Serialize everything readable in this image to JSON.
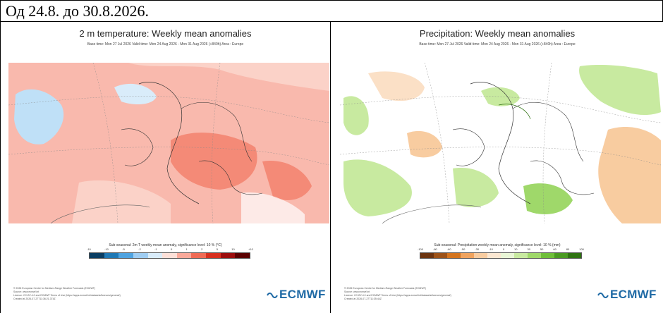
{
  "header": {
    "title": "Од 24.8. до 30.8.2026."
  },
  "left_panel": {
    "title": "2 m temperature: Weekly mean anomalies",
    "subtitle": "Base time: Mon 27 Jul 2026 Valid time: Mon 24 Aug 2026 - Mon 31 Aug 2026 (+840h) Area : Europe",
    "colorbar_caption": "Sub-seasonal: 2m T weekly mean anomaly, significance level: 10 % (°C)",
    "colorbar_ticks": [
      "-10",
      "-10",
      "-5",
      "-2",
      "-1",
      "0",
      "1",
      "2",
      "5",
      "10",
      "+10"
    ],
    "colorbar_colors": [
      "#0a3d62",
      "#1f78b4",
      "#4fa3e0",
      "#9fcdf2",
      "#d9ecfa",
      "#fde0d8",
      "#f9a99a",
      "#f06b55",
      "#d7301f",
      "#9b0d0d",
      "#5a0000"
    ],
    "footer_lines": [
      "© 2026 European Centre for Medium-Range Weather Forecasts (ECMWF)",
      "Source: www.ecmwf.int",
      "Licence: CC-BY-4.0 and ECMWF Terms of Use (https://apps.ecmwf.int/datasets/licences/general/)",
      "Created at 2026-07-27T11:36:21.374Z"
    ],
    "logo_text": "ECMWF"
  },
  "right_panel": {
    "title": "Precipitation: Weekly mean anomalies",
    "subtitle": "Base time: Mon 27 Jul 2026 Valid time: Mon 24 Aug 2026 - Mon 31 Aug 2026 (+840h) Area : Europe",
    "colorbar_caption": "Sub-seasonal: Precipitation weekly mean anomaly, significance level: 10 % (mm)",
    "colorbar_ticks": [
      "-100",
      "-80",
      "-60",
      "-50",
      "-30",
      "-10",
      "0",
      "10",
      "30",
      "50",
      "60",
      "80",
      "100"
    ],
    "colorbar_colors": [
      "#6b3410",
      "#9c5218",
      "#d4751f",
      "#f0a35e",
      "#f8cca0",
      "#fbe7d2",
      "#e9f6d6",
      "#c8eaa0",
      "#9fd86a",
      "#6fbf3a",
      "#4a9a22",
      "#2f7212"
    ],
    "footer_lines": [
      "© 2026 European Centre for Medium-Range Weather Forecasts (ECMWF)",
      "Source: www.ecmwf.int",
      "Licence: CC-BY-4.0 and ECMWF Terms of Use (https://apps.ecmwf.int/datasets/licences/general/)",
      "Created at 2026-07-27T11:35:44Z"
    ],
    "logo_text": "ECMWF"
  }
}
